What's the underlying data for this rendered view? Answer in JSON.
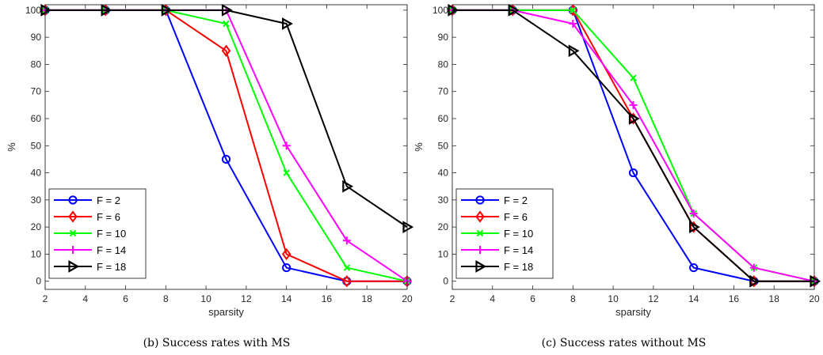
{
  "chart_data": [
    {
      "type": "line",
      "caption": "(b) Success rates with MS",
      "xlabel": "sparsity",
      "ylabel": "%",
      "xlim": [
        2,
        20
      ],
      "ylim": [
        -3,
        102
      ],
      "xticks": [
        2,
        4,
        6,
        8,
        10,
        12,
        14,
        16,
        18,
        20
      ],
      "yticks": [
        0,
        10,
        20,
        30,
        40,
        50,
        60,
        70,
        80,
        90,
        100
      ],
      "grid": false,
      "legend": "bottom-left",
      "x": [
        2,
        5,
        8,
        11,
        14,
        17,
        20
      ],
      "series": [
        {
          "name": "F = 2",
          "color": "#0000ff",
          "marker": "circle",
          "values": [
            100,
            100,
            100,
            45,
            5,
            0,
            0
          ]
        },
        {
          "name": "F = 6",
          "color": "#ff0000",
          "marker": "diamond",
          "values": [
            100,
            100,
            100,
            85,
            10,
            0,
            0
          ]
        },
        {
          "name": "F = 10",
          "color": "#00ff00",
          "marker": "x",
          "values": [
            100,
            100,
            100,
            95,
            40,
            5,
            0
          ]
        },
        {
          "name": "F = 14",
          "color": "#ff00ff",
          "marker": "plus",
          "values": [
            100,
            100,
            100,
            100,
            50,
            15,
            0
          ]
        },
        {
          "name": "F = 18",
          "color": "#000000",
          "marker": "triangle-right",
          "values": [
            100,
            100,
            100,
            100,
            95,
            35,
            20
          ]
        }
      ]
    },
    {
      "type": "line",
      "caption": "(c) Success rates without MS",
      "xlabel": "sparsity",
      "ylabel": "%",
      "xlim": [
        2,
        20
      ],
      "ylim": [
        -3,
        102
      ],
      "xticks": [
        2,
        4,
        6,
        8,
        10,
        12,
        14,
        16,
        18,
        20
      ],
      "yticks": [
        0,
        10,
        20,
        30,
        40,
        50,
        60,
        70,
        80,
        90,
        100
      ],
      "grid": false,
      "legend": "bottom-left",
      "x": [
        2,
        5,
        8,
        11,
        14,
        17,
        20
      ],
      "series": [
        {
          "name": "F = 2",
          "color": "#0000ff",
          "marker": "circle",
          "values": [
            100,
            100,
            100,
            40,
            5,
            0,
            0
          ]
        },
        {
          "name": "F = 6",
          "color": "#ff0000",
          "marker": "diamond",
          "values": [
            100,
            100,
            100,
            60,
            20,
            0,
            0
          ]
        },
        {
          "name": "F = 10",
          "color": "#00ff00",
          "marker": "x",
          "values": [
            100,
            100,
            100,
            75,
            25,
            5,
            0
          ]
        },
        {
          "name": "F = 14",
          "color": "#ff00ff",
          "marker": "plus",
          "values": [
            100,
            100,
            95,
            65,
            25,
            5,
            0
          ]
        },
        {
          "name": "F = 18",
          "color": "#000000",
          "marker": "triangle-right",
          "values": [
            100,
            100,
            85,
            60,
            20,
            0,
            0
          ]
        }
      ]
    }
  ]
}
